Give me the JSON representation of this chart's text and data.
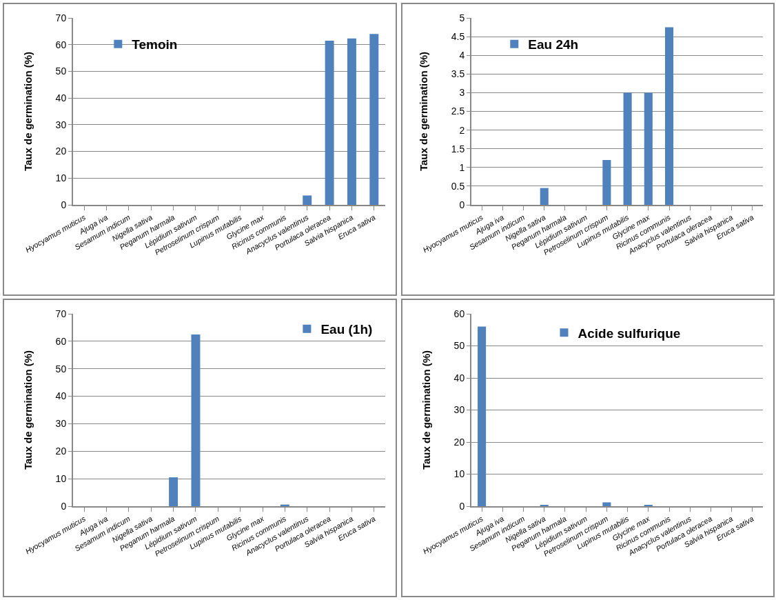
{
  "chart_data": [
    {
      "type": "bar",
      "ylabel": "Taux de germination (%)",
      "categories": [
        "Hyocyamus muticus",
        "Ajuga iva",
        "Sesamum indicum",
        "Nigella sativa",
        "Peganum harmala",
        "Lépidium sativum",
        "Petroselinum crispum",
        "Lupinus mutabilis",
        "Glycine max",
        "Ricinus communis",
        "Anacyclus valentinus",
        "Portulaca oleracea",
        "Salvia hispanica",
        "Eruca sativa"
      ],
      "series": [
        {
          "name": "Temoin",
          "color": "#4f81bd",
          "values": [
            0,
            0,
            0,
            0,
            0,
            0,
            0,
            0,
            0,
            0,
            3.5,
            61.5,
            62.3,
            64
          ]
        }
      ],
      "ylim": [
        0,
        70
      ],
      "yticks": [
        0,
        10,
        20,
        30,
        40,
        50,
        60,
        70
      ],
      "grid": "y",
      "legend": "top left"
    },
    {
      "type": "bar",
      "ylabel": "Taux de germination (%)",
      "categories": [
        "Hyocyamus muticus",
        "Ajuga iva",
        "Sesamum indicum",
        "Nigella sativa",
        "Peganum harmala",
        "Lépidium sativum",
        "Petroselinum crispum",
        "Lupinus mutabilis",
        "Glycine max",
        "Ricinus communis",
        "Anacyclus valentinus",
        "Portulaca oleracea",
        "Salvia hispanica",
        "Eruca sativa"
      ],
      "series": [
        {
          "name": "Eau 24h",
          "color": "#4f81bd",
          "values": [
            0,
            0,
            0,
            0.45,
            0,
            0,
            1.2,
            3,
            3,
            4.75,
            0,
            0,
            0,
            0
          ]
        }
      ],
      "ylim": [
        0,
        5
      ],
      "yticks": [
        0,
        0.5,
        1,
        1.5,
        2,
        2.5,
        3,
        3.5,
        4,
        4.5,
        5
      ],
      "grid": "y",
      "legend": "top left"
    },
    {
      "type": "bar",
      "ylabel": "Taux de germination (%)",
      "categories": [
        "Hyocyamus muticus",
        "Ajuga iva",
        "Sesamum indicum",
        "Nigella sativa",
        "Peganum harmala",
        "Lépidium sativum",
        "Petroselinum crispum",
        "Lupinus mutabilis",
        "Glycine max",
        "Ricinus communis",
        "Anacyclus valentinus",
        "Portulaca oleracea",
        "Salvia hispanica",
        "Eruca sativa"
      ],
      "series": [
        {
          "name": "Eau (1h)",
          "color": "#4f81bd",
          "values": [
            0,
            0,
            0,
            0,
            10.5,
            62.5,
            0,
            0,
            0,
            0.6,
            0,
            0,
            0,
            0
          ]
        }
      ],
      "ylim": [
        0,
        70
      ],
      "yticks": [
        0,
        10,
        20,
        30,
        40,
        50,
        60,
        70
      ],
      "grid": "y",
      "legend": "top right"
    },
    {
      "type": "bar",
      "ylabel": "Taux de germination (%)",
      "categories": [
        "Hyocyamus muticus",
        "Ajuga iva",
        "Sesamum indicum",
        "Nigella sativa",
        "Peganum harmala",
        "Lépidium sativum",
        "Petroselinum crispum",
        "Lupinus mutabilis",
        "Glycine max",
        "Ricinus communis",
        "Anacyclus valentinus",
        "Portulaca oleracea",
        "Salvia hispanica",
        "Eruca sativa"
      ],
      "series": [
        {
          "name": "Acide sulfurique",
          "color": "#4f81bd",
          "values": [
            56,
            0,
            0,
            0.3,
            0,
            0,
            1.2,
            0,
            0.4,
            0,
            0,
            0,
            0,
            0
          ]
        }
      ],
      "ylim": [
        0,
        60
      ],
      "yticks": [
        0,
        10,
        20,
        30,
        40,
        50,
        60
      ],
      "grid": "y",
      "legend": "top center"
    }
  ]
}
